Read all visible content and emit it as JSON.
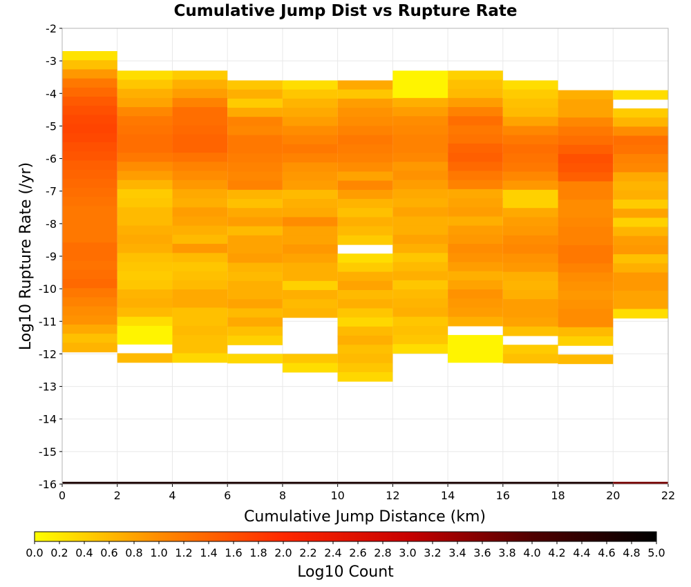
{
  "chart_data": {
    "type": "heatmap",
    "title": "Cumulative Jump Dist vs Rupture Rate",
    "xlabel": "Cumulative Jump Distance (km)",
    "ylabel": "Log10 Rupture Rate (/yr)",
    "xlim": [
      0,
      22
    ],
    "ylim": [
      -16,
      -2
    ],
    "x_ticks": [
      "0",
      "2",
      "4",
      "6",
      "8",
      "10",
      "12",
      "14",
      "16",
      "18",
      "20",
      "22"
    ],
    "y_ticks": [
      "-2",
      "-3",
      "-4",
      "-5",
      "-6",
      "-7",
      "-8",
      "-9",
      "-10",
      "-11",
      "-12",
      "-13",
      "-14",
      "-15",
      "-16"
    ],
    "grid": true,
    "x_bin_width": 2,
    "y_bin_height": 0.28,
    "colorbar": {
      "label": "Log10 Count",
      "range": [
        0,
        5
      ],
      "ticks": [
        "0.0",
        "0.2",
        "0.4",
        "0.6",
        "0.8",
        "1.0",
        "1.2",
        "1.4",
        "1.6",
        "1.8",
        "2.0",
        "2.2",
        "2.4",
        "2.6",
        "2.8",
        "3.0",
        "3.2",
        "3.4",
        "3.6",
        "3.8",
        "4.0",
        "4.2",
        "4.4",
        "4.6",
        "4.8",
        "5.0"
      ],
      "colors": [
        "#ffff00",
        "#ff8c00",
        "#ff2800",
        "#c80000",
        "#500000",
        "#000000"
      ]
    },
    "columns": [
      {
        "x_start": 0,
        "y_top": -2.7,
        "values": [
          0.25,
          0.55,
          0.9,
          1.2,
          1.35,
          1.5,
          1.6,
          1.68,
          1.72,
          1.68,
          1.6,
          1.55,
          1.45,
          1.4,
          1.35,
          1.3,
          1.25,
          1.2,
          1.2,
          1.2,
          1.2,
          1.3,
          1.3,
          1.25,
          1.3,
          1.35,
          1.2,
          1.1,
          1.0,
          0.95,
          0.75,
          0.55,
          0.65
        ]
      },
      {
        "x_start": 2,
        "y_top": -3.3,
        "values": [
          0.3,
          0.5,
          0.7,
          0.8,
          1.05,
          1.2,
          1.25,
          1.3,
          1.3,
          1.2,
          1.0,
          0.85,
          0.65,
          0.45,
          0.5,
          0.6,
          0.6,
          0.7,
          0.75,
          0.7,
          0.55,
          0.5,
          0.45,
          0.5,
          0.65,
          0.7,
          0.6,
          0.3,
          0.1,
          0.1,
          null,
          0.6
        ]
      },
      {
        "x_start": 4,
        "y_top": -3.3,
        "values": [
          0.45,
          0.7,
          0.85,
          1.1,
          1.3,
          1.3,
          1.35,
          1.4,
          1.4,
          1.25,
          1.1,
          1.0,
          0.9,
          0.75,
          0.7,
          0.85,
          0.8,
          0.7,
          0.6,
          0.9,
          0.6,
          0.5,
          0.55,
          0.6,
          0.75,
          0.75,
          0.55,
          0.55,
          0.6,
          0.55,
          0.55,
          0.35
        ]
      },
      {
        "x_start": 6,
        "y_top": -3.6,
        "values": [
          0.5,
          0.7,
          0.45,
          0.75,
          1.1,
          1.05,
          1.2,
          1.2,
          1.15,
          1.1,
          1.05,
          1.1,
          0.65,
          0.55,
          0.75,
          0.85,
          0.6,
          0.8,
          0.8,
          0.85,
          0.65,
          0.6,
          0.7,
          0.7,
          0.8,
          0.6,
          0.75,
          0.55,
          0.4,
          null,
          0.35
        ]
      },
      {
        "x_start": 8,
        "y_top": -3.6,
        "values": [
          0.3,
          0.5,
          0.65,
          0.75,
          0.85,
          1.0,
          1.1,
          1.2,
          1.1,
          0.95,
          0.9,
          0.85,
          0.6,
          0.7,
          0.75,
          1.0,
          0.8,
          0.8,
          0.9,
          0.8,
          0.7,
          0.7,
          0.4,
          0.7,
          0.6,
          0.65,
          null,
          null,
          null,
          null,
          0.5,
          0.3
        ]
      },
      {
        "x_start": 10,
        "y_top": -3.6,
        "values": [
          0.75,
          0.5,
          0.85,
          0.95,
          1.0,
          1.1,
          1.2,
          1.15,
          1.1,
          1.0,
          0.8,
          1.05,
          0.85,
          0.65,
          0.55,
          0.7,
          0.6,
          0.45,
          null,
          0.3,
          0.45,
          0.7,
          0.8,
          0.6,
          0.7,
          0.5,
          0.35,
          0.6,
          0.7,
          0.55,
          0.6,
          0.5,
          0.35
        ]
      },
      {
        "x_start": 12,
        "y_top": -3.3,
        "values": [
          0.1,
          0.1,
          0.1,
          0.7,
          0.85,
          1.0,
          1.05,
          1.1,
          1.1,
          1.05,
          0.9,
          0.95,
          0.85,
          0.75,
          0.7,
          0.8,
          0.7,
          0.7,
          0.8,
          0.7,
          0.5,
          0.6,
          0.7,
          0.5,
          0.6,
          0.65,
          0.7,
          0.5,
          0.55,
          0.5,
          0.3
        ]
      },
      {
        "x_start": 14,
        "y_top": -3.3,
        "values": [
          0.4,
          0.55,
          0.6,
          0.85,
          1.1,
          1.3,
          1.2,
          1.25,
          1.4,
          1.45,
          1.35,
          1.2,
          1.1,
          0.75,
          0.8,
          0.85,
          0.7,
          0.85,
          0.9,
          1.0,
          0.95,
          0.85,
          0.7,
          0.8,
          0.95,
          0.9,
          0.85,
          0.7,
          null,
          0.1,
          0.1,
          0.1
        ]
      },
      {
        "x_start": 16,
        "y_top": -3.6,
        "values": [
          0.3,
          0.45,
          0.55,
          0.6,
          0.8,
          1.05,
          1.2,
          1.3,
          1.25,
          1.2,
          1.05,
          0.9,
          0.4,
          0.4,
          0.75,
          0.85,
          0.9,
          1.0,
          1.05,
          0.95,
          0.9,
          0.7,
          0.65,
          0.7,
          0.85,
          0.85,
          0.8,
          0.55,
          null,
          0.45,
          0.55
        ]
      },
      {
        "x_start": 18,
        "y_top": -3.9,
        "values": [
          0.7,
          0.8,
          0.8,
          1.05,
          1.2,
          1.3,
          1.45,
          1.6,
          1.55,
          1.45,
          1.1,
          1.1,
          1.0,
          1.0,
          1.05,
          1.1,
          1.1,
          1.2,
          1.2,
          1.1,
          1.0,
          0.95,
          0.9,
          0.95,
          1.0,
          1.0,
          0.6,
          0.4,
          null,
          0.6
        ]
      },
      {
        "x_start": 20,
        "y_top": -3.9,
        "values": [
          0.3,
          null,
          0.45,
          0.65,
          1.0,
          1.3,
          1.25,
          1.1,
          1.05,
          0.75,
          0.65,
          0.7,
          0.45,
          0.8,
          0.4,
          0.65,
          0.85,
          0.9,
          0.55,
          0.7,
          0.9,
          0.9,
          0.8,
          0.8,
          0.3
        ]
      }
    ],
    "bottom_band": {
      "y_start": -15.93,
      "y_end": -16.0,
      "x_split": 20,
      "values": [
        4.7,
        3.7
      ]
    }
  }
}
